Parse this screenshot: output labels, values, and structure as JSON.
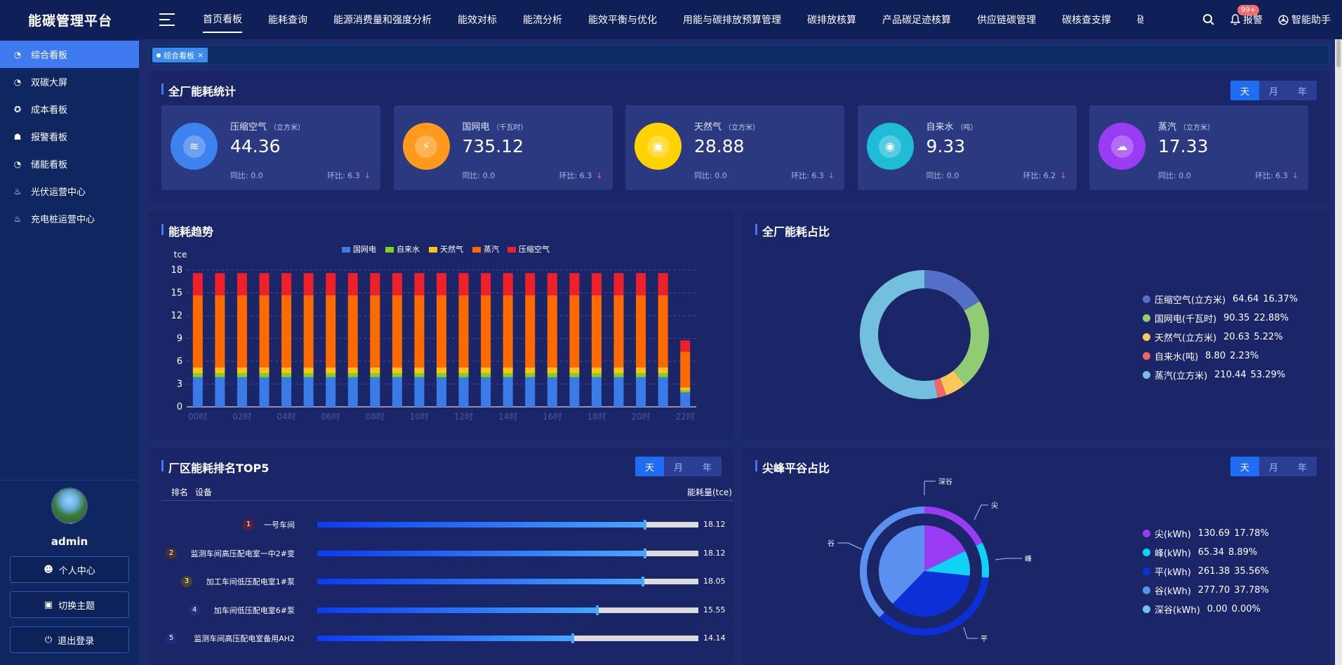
{
  "app": {
    "title": "能碳管理平台"
  },
  "nav": [
    "首页看板",
    "能耗查询",
    "能源消费量和强度分析",
    "能效对标",
    "能流分析",
    "能效平衡与优化",
    "用能与碳排放预算管理",
    "碳排放核算",
    "产品碳足迹核算",
    "供应链碳管理",
    "碳核查支撑",
    "碳彩"
  ],
  "top_right": {
    "badge": "99+",
    "alarm": "报警",
    "assistant": "智能助手"
  },
  "sidebar": [
    {
      "label": "综合看板",
      "icon": "dashboard-icon"
    },
    {
      "label": "双碳大屏",
      "icon": "dashboard-icon"
    },
    {
      "label": "成本看板",
      "icon": "cost-icon"
    },
    {
      "label": "报警看板",
      "icon": "alarm-icon"
    },
    {
      "label": "储能看板",
      "icon": "dashboard-icon"
    },
    {
      "label": "光伏运营中心",
      "icon": "solar-icon"
    },
    {
      "label": "充电桩运营中心",
      "icon": "charger-icon"
    }
  ],
  "user": {
    "name": "admin",
    "btn_profile": "个人中心",
    "btn_theme": "切换主题",
    "btn_logout": "退出登录"
  },
  "tab": {
    "label": "综合看板",
    "close": "×"
  },
  "period": {
    "day": "天",
    "month": "月",
    "year": "年"
  },
  "stats": {
    "title": "全厂能耗统计",
    "cards": [
      {
        "name": "压缩空气",
        "unit": "（立方米）",
        "value": "44.36",
        "yoy": "同比: 0.0",
        "mom": "环比: 6.3",
        "color": "#3e82f0",
        "icon": "air-icon"
      },
      {
        "name": "国网电",
        "unit": "（千瓦时）",
        "value": "735.12",
        "yoy": "同比: 0.0",
        "mom": "环比: 6.3",
        "color": "#ff9a1c",
        "icon": "power-icon"
      },
      {
        "name": "天然气",
        "unit": "（立方米）",
        "value": "28.88",
        "yoy": "同比: 0.0",
        "mom": "环比: 6.3",
        "color": "#ffd200",
        "icon": "gas-icon"
      },
      {
        "name": "自来水",
        "unit": "（吨）",
        "value": "9.33",
        "yoy": "同比: 0.0",
        "mom": "环比: 6.2",
        "color": "#1fbcd8",
        "icon": "water-icon"
      },
      {
        "name": "蒸汽",
        "unit": "（立方米）",
        "value": "17.33",
        "yoy": "同比: 0.0",
        "mom": "环比: 6.3",
        "color": "#9b3cf5",
        "icon": "steam-icon"
      }
    ]
  },
  "trend": {
    "title": "能耗趋势"
  },
  "share": {
    "title": "全厂能耗占比",
    "items": [
      {
        "label": "压缩空气(立方米)",
        "value": "64.64",
        "pct": "16.37%",
        "color": "#5470c6"
      },
      {
        "label": "国网电(千瓦时)",
        "value": "90.35",
        "pct": "22.88%",
        "color": "#91cc75"
      },
      {
        "label": "天然气(立方米)",
        "value": "20.63",
        "pct": "5.22%",
        "color": "#fac858"
      },
      {
        "label": "自来水(吨)",
        "value": "8.80",
        "pct": "2.23%",
        "color": "#ee6666"
      },
      {
        "label": "蒸汽(立方米)",
        "value": "210.44",
        "pct": "53.29%",
        "color": "#73c0de"
      }
    ]
  },
  "rank": {
    "title": "厂区能耗排名TOP5",
    "col_rank": "排名",
    "col_device": "设备",
    "col_value": "能耗量(tce)",
    "rows": [
      {
        "n": "1",
        "name": "一号车间",
        "value": "18.12",
        "ratio": 0.86,
        "numColor": "#5a1f3f"
      },
      {
        "n": "2",
        "name": "监测车间高压配电室一中2#变",
        "value": "18.12",
        "ratio": 0.86,
        "numColor": "#4a2f2a"
      },
      {
        "n": "3",
        "name": "加工车间低压配电室1#泵",
        "value": "18.05",
        "ratio": 0.855,
        "numColor": "#4a4428"
      },
      {
        "n": "4",
        "name": "加车间低压配电室6#泵",
        "value": "15.55",
        "ratio": 0.735,
        "numColor": "#1f2f7a"
      },
      {
        "n": "5",
        "name": "监测车间高压配电室备用AH2",
        "value": "14.14",
        "ratio": 0.67,
        "numColor": "#1f2f7a"
      }
    ]
  },
  "peak": {
    "title": "尖峰平谷占比",
    "items": [
      {
        "label": "尖(kWh)",
        "value": "130.69",
        "pct": "17.78%",
        "color": "#9b3cf5"
      },
      {
        "label": "峰(kWh)",
        "value": "65.34",
        "pct": "8.89%",
        "color": "#0fd2f5"
      },
      {
        "label": "平(kWh)",
        "value": "261.38",
        "pct": "35.56%",
        "color": "#0c2fd8"
      },
      {
        "label": "谷(kWh)",
        "value": "277.70",
        "pct": "37.78%",
        "color": "#5b8ff0"
      },
      {
        "label": "深谷(kWh)",
        "value": "0.00",
        "pct": "0.00%",
        "color": "#73c0f5"
      }
    ],
    "callouts": [
      "深谷",
      "尖",
      "峰",
      "平",
      "谷"
    ]
  },
  "chart_data": [
    {
      "type": "bar",
      "stacked": true,
      "ylabel": "tce",
      "ylim": [
        0,
        18
      ],
      "yticks": [
        0,
        3,
        6,
        9,
        12,
        15,
        18
      ],
      "legend_position": "top",
      "categories": [
        "00时",
        "01时",
        "02时",
        "03时",
        "04时",
        "05时",
        "06时",
        "07时",
        "08时",
        "09时",
        "10时",
        "11时",
        "12时",
        "13时",
        "14时",
        "15时",
        "16时",
        "17时",
        "18时",
        "19时",
        "20时",
        "21时",
        "22时"
      ],
      "x_tick_labels": [
        "00时",
        "02时",
        "04时",
        "06时",
        "08时",
        "10时",
        "12时",
        "14时",
        "16时",
        "18时",
        "20时",
        "22时"
      ],
      "series": [
        {
          "name": "国网电",
          "color": "#3a7be8",
          "values": [
            3.9,
            3.9,
            3.9,
            3.9,
            3.9,
            3.9,
            3.9,
            3.9,
            3.9,
            3.9,
            3.9,
            3.9,
            3.9,
            3.9,
            3.9,
            3.9,
            3.9,
            3.9,
            3.9,
            3.9,
            3.9,
            3.9,
            1.9
          ]
        },
        {
          "name": "自来水",
          "color": "#7ed321",
          "values": [
            0.5,
            0.5,
            0.5,
            0.5,
            0.5,
            0.5,
            0.5,
            0.5,
            0.5,
            0.5,
            0.5,
            0.5,
            0.5,
            0.5,
            0.5,
            0.5,
            0.5,
            0.5,
            0.5,
            0.5,
            0.5,
            0.5,
            0.25
          ]
        },
        {
          "name": "天然气",
          "color": "#ffc21a",
          "values": [
            0.8,
            0.8,
            0.8,
            0.8,
            0.8,
            0.8,
            0.8,
            0.8,
            0.8,
            0.8,
            0.8,
            0.8,
            0.8,
            0.8,
            0.8,
            0.8,
            0.8,
            0.8,
            0.8,
            0.8,
            0.8,
            0.8,
            0.4
          ]
        },
        {
          "name": "蒸汽",
          "color": "#ff6a00",
          "values": [
            9.5,
            9.5,
            9.5,
            9.5,
            9.5,
            9.5,
            9.5,
            9.5,
            9.5,
            9.5,
            9.5,
            9.5,
            9.5,
            9.5,
            9.5,
            9.5,
            9.5,
            9.5,
            9.5,
            9.5,
            9.5,
            9.5,
            4.7
          ]
        },
        {
          "name": "压缩空气",
          "color": "#f0202a",
          "values": [
            2.9,
            2.9,
            2.9,
            2.9,
            2.9,
            2.9,
            2.9,
            2.9,
            2.9,
            2.9,
            2.9,
            2.9,
            2.9,
            2.9,
            2.9,
            2.9,
            2.9,
            2.9,
            2.9,
            2.9,
            2.9,
            2.9,
            1.5
          ]
        }
      ]
    },
    {
      "type": "pie",
      "donut": true,
      "labels": [
        "压缩空气(立方米)",
        "国网电(千瓦时)",
        "天然气(立方米)",
        "自来水(吨)",
        "蒸汽(立方米)"
      ],
      "values": [
        64.64,
        90.35,
        20.63,
        8.8,
        210.44
      ]
    },
    {
      "type": "pie",
      "labels": [
        "尖(kWh)",
        "峰(kWh)",
        "平(kWh)",
        "谷(kWh)",
        "深谷(kWh)"
      ],
      "values": [
        130.69,
        65.34,
        261.38,
        277.7,
        0.0
      ]
    }
  ]
}
